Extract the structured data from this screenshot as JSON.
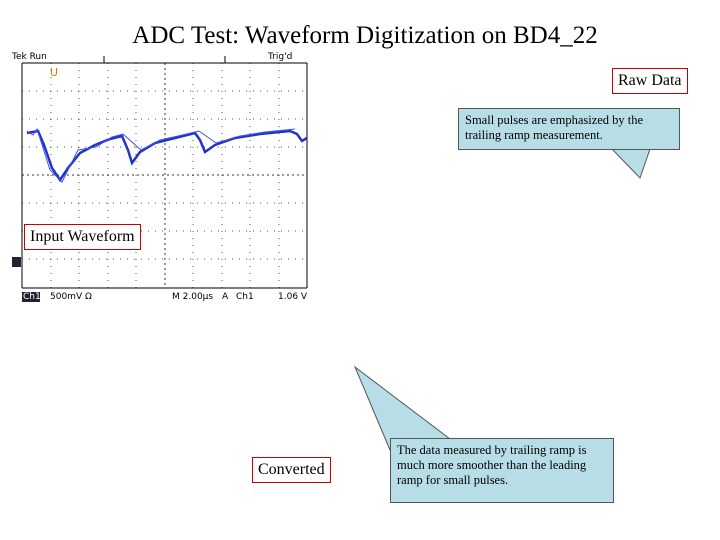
{
  "title": "ADC Test: Waveform Digitization on BD4_22",
  "scope": {
    "status": "Tek Run",
    "trigger_state": "Trig'd",
    "channel": "Ch1",
    "volts_per_div": "500mV Ω",
    "time_per_div": "M 2.00µs",
    "trigger_mode": "A",
    "trigger_source": "Ch1",
    "trigger_level": "1.06 V"
  },
  "labels": {
    "raw": "Raw Data",
    "input": "Input Waveform",
    "converted": "Converted"
  },
  "callouts": [
    "Small pulses are emphasized by the trailing ramp measurement.",
    "The data measured by trailing ramp is much more smoother than the leading ramp for small pulses."
  ]
}
